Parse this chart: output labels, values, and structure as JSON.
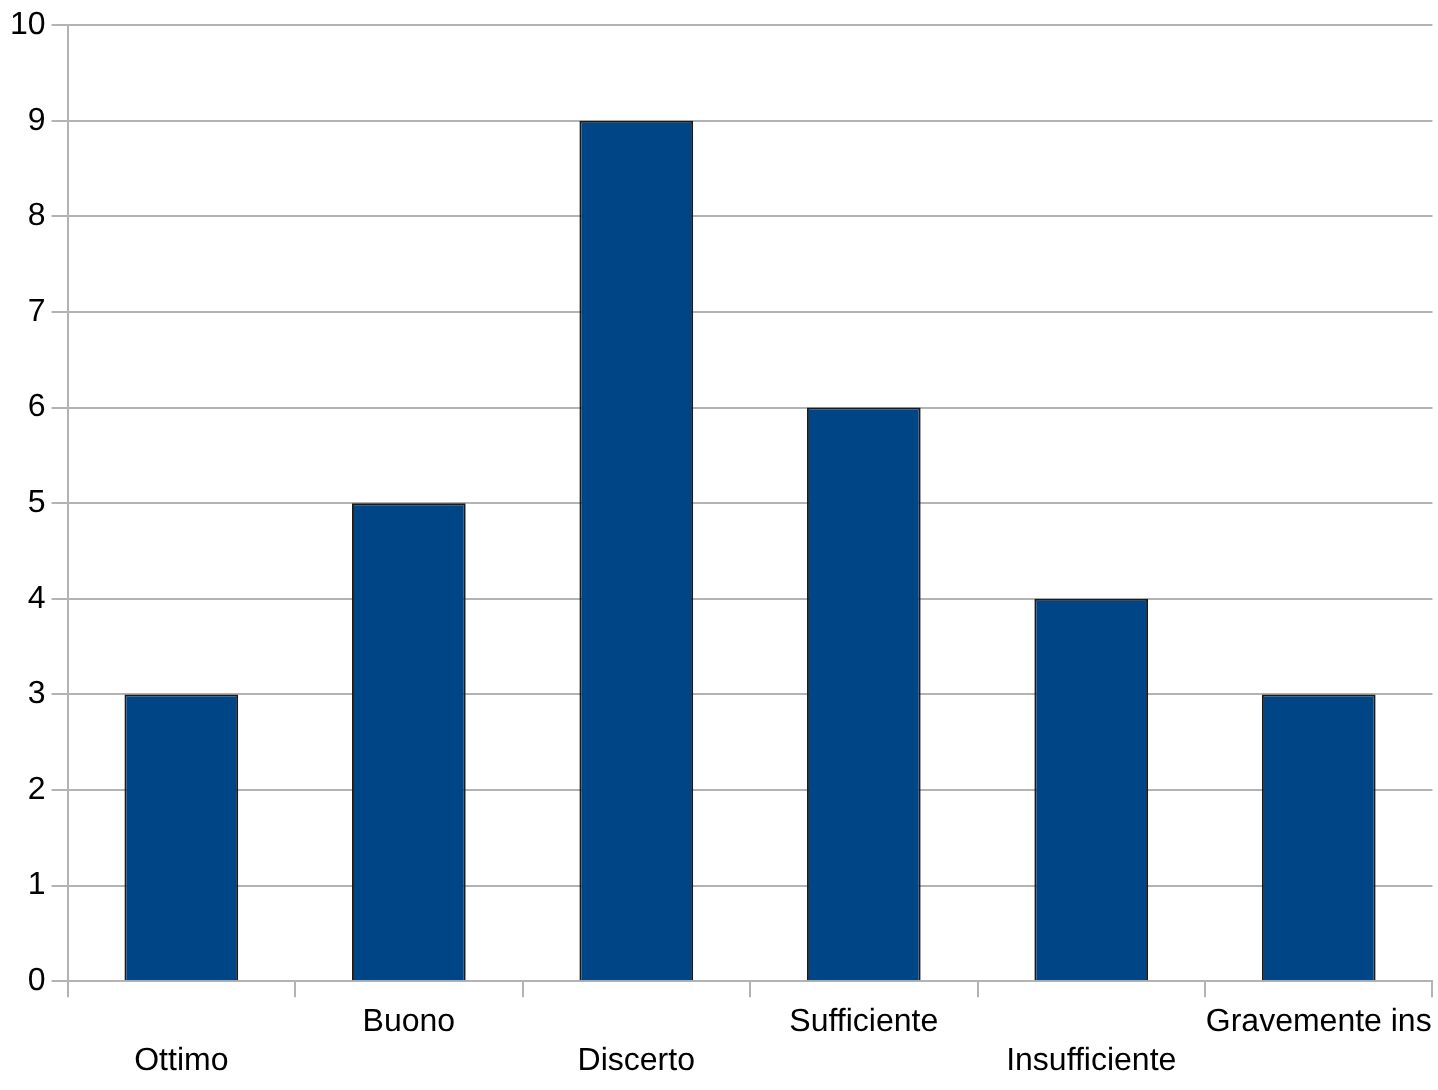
{
  "chart_data": {
    "type": "bar",
    "categories": [
      "Ottimo",
      "Buono",
      "Discerto",
      "Sufficiente",
      "Insufficiente",
      "Gravemente ins"
    ],
    "values": [
      3,
      5,
      9,
      6,
      4,
      3
    ],
    "color": "#004586",
    "ylim": [
      0,
      10
    ],
    "yticks": [
      0,
      1,
      2,
      3,
      4,
      5,
      6,
      7,
      8,
      9,
      10
    ],
    "grid": "y",
    "legend": false
  }
}
